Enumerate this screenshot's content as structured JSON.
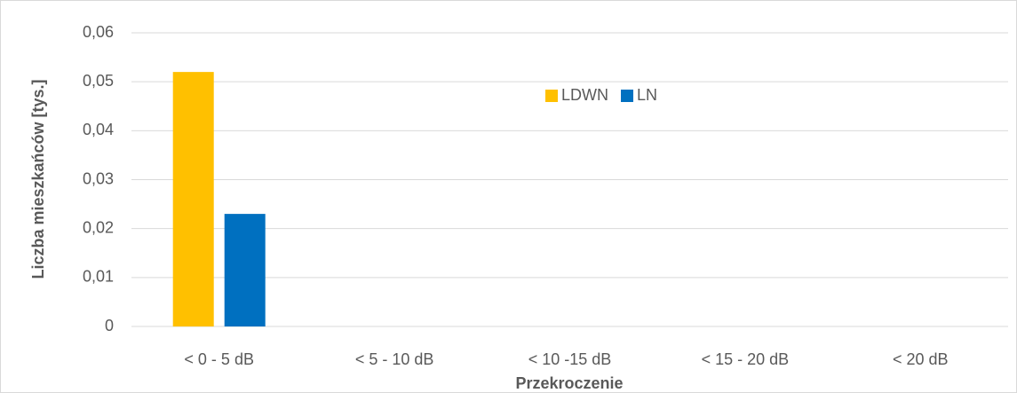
{
  "chart_data": {
    "type": "bar",
    "x_label": "Przekroczenie",
    "y_label": "Liczba mieszkańców [tys.]",
    "categories": [
      "< 0 - 5 dB",
      "< 5 - 10 dB",
      "< 10 -15 dB",
      "< 15 - 20 dB",
      "< 20 dB"
    ],
    "series": [
      {
        "name": "LDWN",
        "color": "#ffc000",
        "values": [
          0.052,
          0,
          0,
          0,
          0
        ]
      },
      {
        "name": "LN",
        "color": "#0070c0",
        "values": [
          0.023,
          0,
          0,
          0,
          0
        ]
      }
    ],
    "ylim": [
      0,
      0.06
    ],
    "yticks": [
      0,
      {
        "value": 0.01,
        "label": "0,01"
      },
      {
        "value": 0.02,
        "label": "0,02"
      },
      {
        "value": 0.03,
        "label": "0,03"
      },
      {
        "value": 0.04,
        "label": "0,04"
      },
      {
        "value": 0.05,
        "label": "0,05"
      },
      {
        "value": 0.06,
        "label": "0,06"
      }
    ],
    "grid": true,
    "legend": "top"
  }
}
